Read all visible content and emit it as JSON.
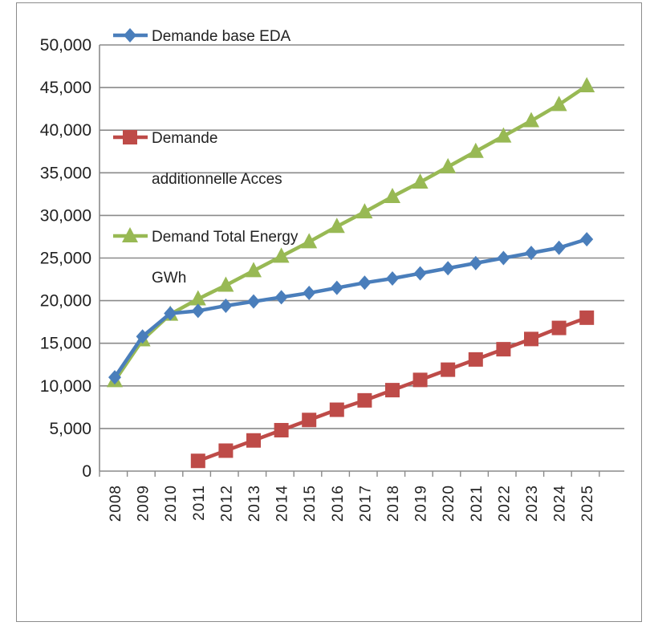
{
  "chart_data": {
    "type": "line",
    "categories": [
      "2008",
      "2009",
      "2010",
      "2011",
      "2012",
      "2013",
      "2014",
      "2015",
      "2016",
      "2017",
      "2018",
      "2019",
      "2020",
      "2021",
      "2022",
      "2023",
      "2024",
      "2025"
    ],
    "yticks": [
      "0",
      "5,000",
      "10,000",
      "15,000",
      "20,000",
      "25,000",
      "30,000",
      "35,000",
      "40,000",
      "45,000",
      "50,000"
    ],
    "ylim": [
      0,
      50000
    ],
    "grid": true,
    "legend_position": "top-left",
    "series": [
      {
        "name": "Demande base EDA",
        "color": "#4a7ebb",
        "marker": "diamond",
        "values": [
          11000,
          15800,
          18500,
          18800,
          19400,
          19900,
          20400,
          20900,
          21500,
          22100,
          22600,
          23200,
          23800,
          24400,
          25000,
          25600,
          26200,
          27200
        ]
      },
      {
        "name": "Demande additionnelle Acces",
        "name_lines": [
          "Demande",
          "additionnelle Acces"
        ],
        "color": "#be4b48",
        "marker": "square",
        "values": [
          null,
          null,
          null,
          1200,
          2400,
          3600,
          4800,
          6000,
          7200,
          8300,
          9500,
          10700,
          11900,
          13100,
          14300,
          15500,
          16800,
          18000
        ]
      },
      {
        "name": "Demand Total Energy GWh",
        "name_lines": [
          "Demand Total Energy",
          "GWh"
        ],
        "color": "#98b954",
        "marker": "triangle",
        "values": [
          10600,
          15400,
          18400,
          20200,
          21800,
          23500,
          25200,
          26900,
          28700,
          30400,
          32200,
          33900,
          35700,
          37500,
          39300,
          41100,
          43000,
          45200
        ]
      }
    ]
  }
}
